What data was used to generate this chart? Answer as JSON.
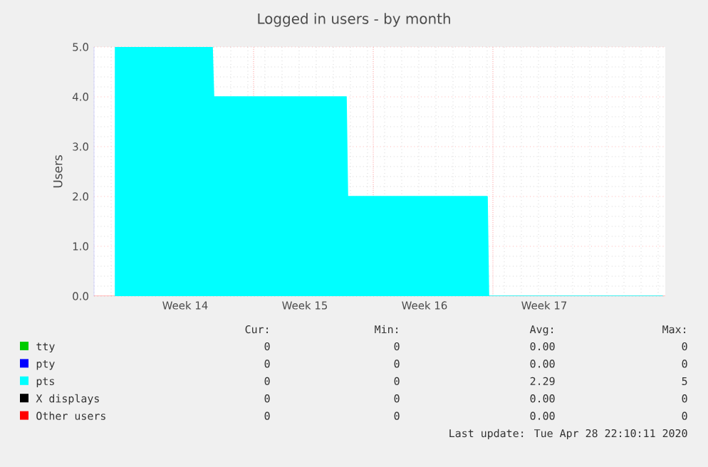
{
  "chart_data": {
    "type": "area",
    "title": "Logged in users - by month",
    "ylabel": "Users",
    "x": [
      "2020-03-28T22:00",
      "2020-04-03T14:00",
      "2020-04-03T16:00",
      "2020-04-11T10:00",
      "2020-04-11T12:00",
      "2020-04-19T16:00",
      "2020-04-19T18:00",
      "2020-04-29T22:00"
    ],
    "series": [
      {
        "name": "tty",
        "color": "#00cc00",
        "values": [
          null,
          null,
          null,
          null,
          null,
          null,
          null,
          null
        ]
      },
      {
        "name": "pty",
        "color": "#0000ff",
        "values": [
          null,
          null,
          null,
          null,
          null,
          null,
          null,
          null
        ]
      },
      {
        "name": "pts",
        "color": "#00ffff",
        "values": [
          5,
          5,
          4,
          4,
          2,
          2,
          0,
          0
        ]
      },
      {
        "name": "X displays",
        "color": "#000000",
        "values": [
          null,
          null,
          null,
          null,
          null,
          null,
          null,
          null
        ]
      },
      {
        "name": "Other users",
        "color": "#ff0000",
        "values": [
          null,
          null,
          null,
          null,
          null,
          null,
          null,
          null
        ]
      }
    ],
    "xlim": [
      "2020-03-27T16:00",
      "2020-04-30T02:00"
    ],
    "xticks": [
      {
        "value": "2020-03-30",
        "label": null
      },
      {
        "value": "2020-04-02",
        "label": "Week 14"
      },
      {
        "value": "2020-04-06",
        "label": null
      },
      {
        "value": "2020-04-09",
        "label": "Week 15"
      },
      {
        "value": "2020-04-13",
        "label": null
      },
      {
        "value": "2020-04-16",
        "label": "Week 16"
      },
      {
        "value": "2020-04-20",
        "label": null
      },
      {
        "value": "2020-04-23",
        "label": "Week 17"
      }
    ],
    "ylim": [
      0,
      5
    ],
    "yticks": [
      {
        "value": 0,
        "label": "0.0"
      },
      {
        "value": 1,
        "label": "1.0"
      },
      {
        "value": 2,
        "label": "2.0"
      },
      {
        "value": 3,
        "label": "3.0"
      },
      {
        "value": 4,
        "label": "4.0"
      },
      {
        "value": 5,
        "label": "5.0"
      }
    ],
    "grid": true,
    "legend": "bottom",
    "annotations": [
      "Cur:",
      "Min:",
      "Avg:",
      "Max:",
      "0",
      "0",
      "0.00",
      "0",
      "0",
      "0",
      "0.00",
      "0",
      "0",
      "0",
      "2.29",
      "5",
      "0",
      "0",
      "0.00",
      "0",
      "0",
      "0",
      "0.00",
      "0",
      "Last update: Tue Apr 28 22:10:11 2020"
    ]
  }
}
